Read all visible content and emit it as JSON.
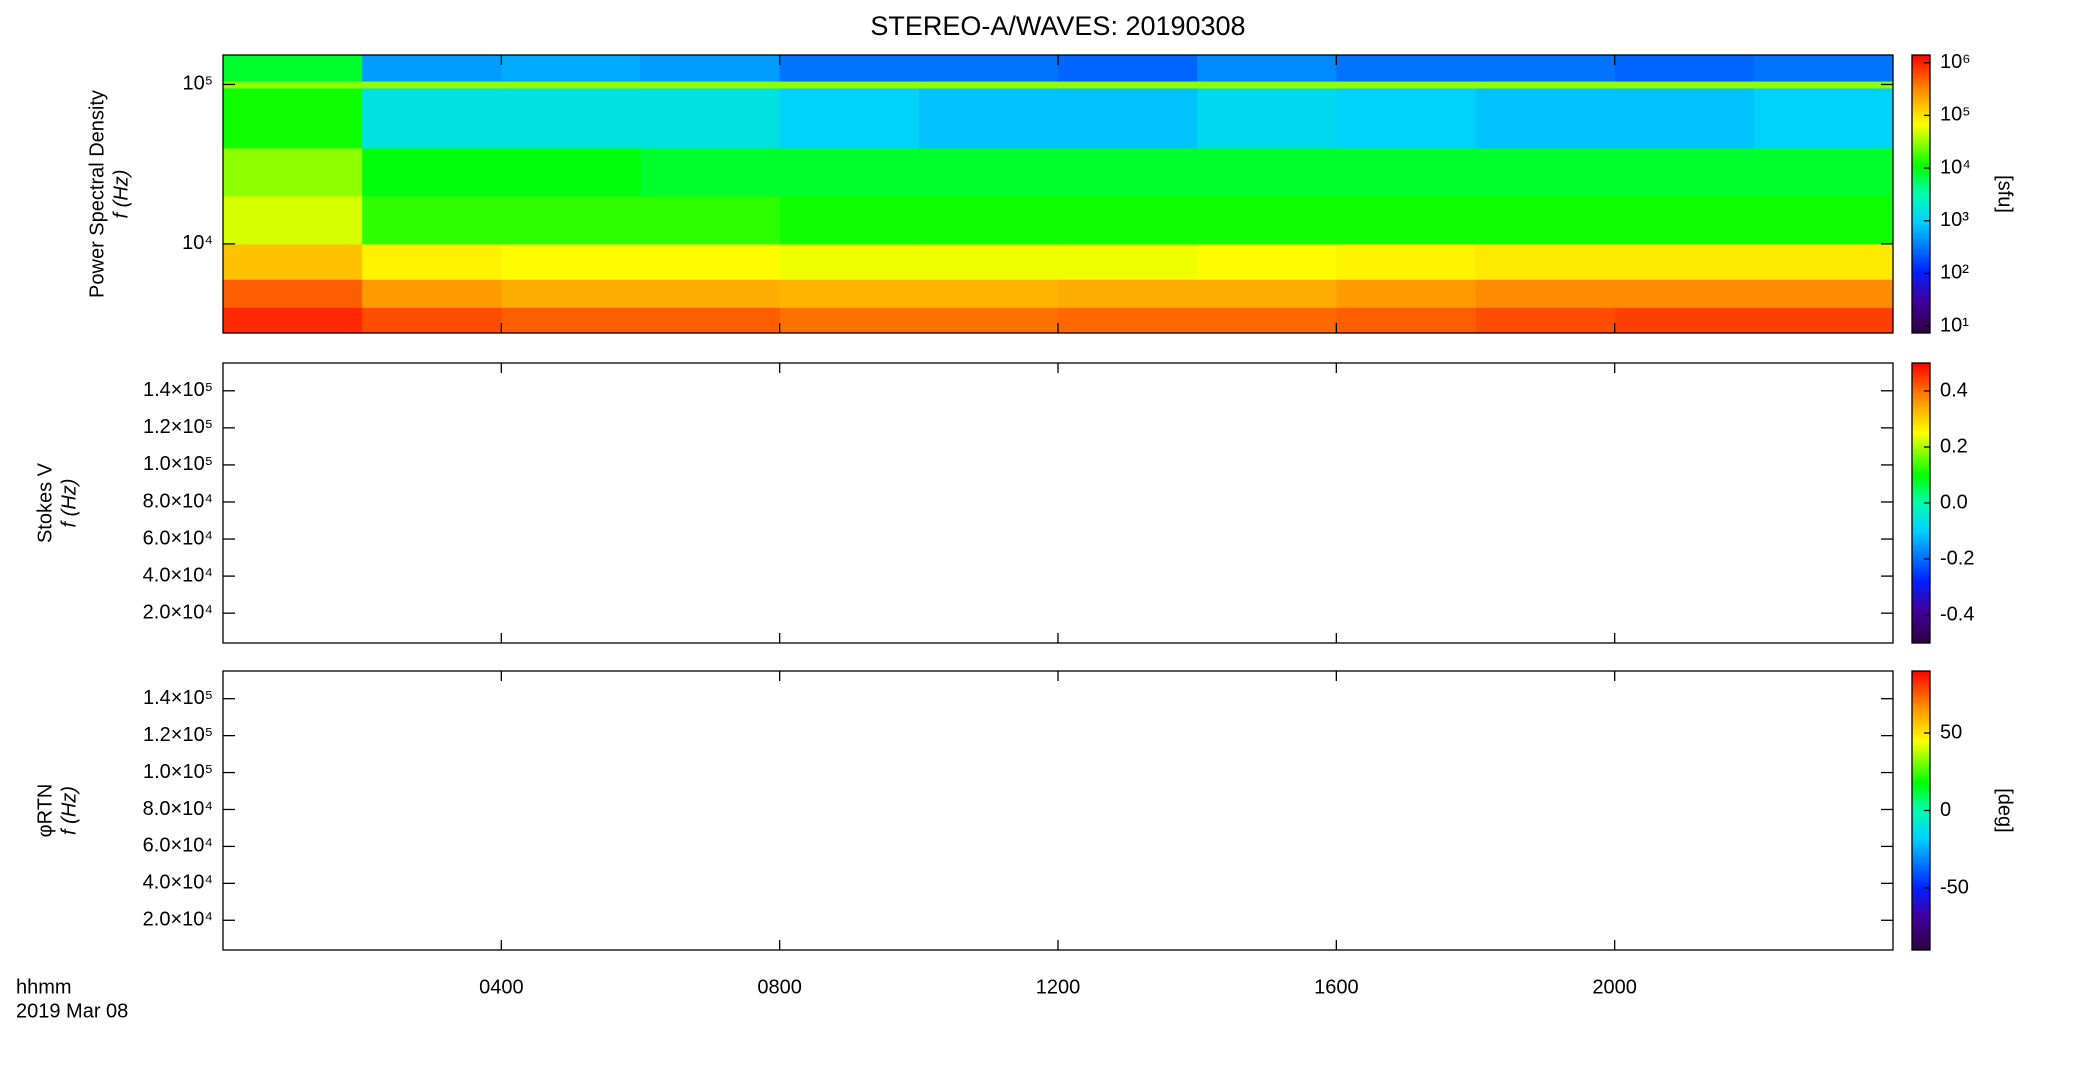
{
  "chart_data": [
    {
      "type": "heatmap",
      "title": "STEREO-A/WAVES: 20190308",
      "ylabel": [
        "Power Spectral Density",
        "f (Hz)"
      ],
      "xlim": [
        0,
        24
      ],
      "xticks": [
        4,
        8,
        12,
        16,
        20
      ],
      "ylog": true,
      "ylim": [
        2760,
        153000
      ],
      "yticks": [
        {
          "value": 10000,
          "label": "10⁴"
        },
        {
          "value": 100000,
          "label": "10⁵"
        }
      ],
      "x_bins": [
        0,
        2,
        4,
        6,
        8,
        10,
        12,
        14,
        16,
        18,
        20,
        22,
        24
      ],
      "y_bins": [
        2760,
        4000,
        6000,
        10000,
        20000,
        40000,
        95000,
        105000,
        153000
      ],
      "values": [
        [
          900000,
          600000,
          500000,
          500000,
          400000,
          400000,
          450000,
          450000,
          500000,
          600000,
          700000,
          700000
        ],
        [
          500000,
          250000,
          200000,
          200000,
          180000,
          180000,
          200000,
          200000,
          250000,
          300000,
          300000,
          300000
        ],
        [
          150000,
          80000,
          70000,
          70000,
          60000,
          60000,
          60000,
          70000,
          80000,
          90000,
          90000,
          90000
        ],
        [
          50000,
          15000,
          15000,
          15000,
          12000,
          12000,
          12000,
          12000,
          12000,
          12000,
          12000,
          12000
        ],
        [
          30000,
          10000,
          10000,
          8000,
          8000,
          8000,
          8000,
          8000,
          8000,
          8000,
          8000,
          8000
        ],
        [
          12000,
          1500,
          1500,
          1500,
          1000,
          800,
          800,
          1200,
          1000,
          800,
          800,
          1000
        ],
        [
          30000,
          30000,
          30000,
          30000,
          30000,
          30000,
          30000,
          30000,
          30000,
          30000,
          30000,
          30000
        ],
        [
          8000,
          500,
          600,
          500,
          300,
          300,
          250,
          400,
          300,
          300,
          250,
          300
        ]
      ],
      "clog": true,
      "clim": [
        7.4,
        1400000
      ],
      "cticks": [
        {
          "value": 10,
          "label": "10¹"
        },
        {
          "value": 100,
          "label": "10²"
        },
        {
          "value": 1000,
          "label": "10³"
        },
        {
          "value": 10000,
          "label": "10⁴"
        },
        {
          "value": 100000,
          "label": "10⁵"
        },
        {
          "value": 1000000,
          "label": "10⁶"
        }
      ],
      "clabel": "[sfu]"
    },
    {
      "type": "heatmap",
      "ylabel": [
        "Stokes V",
        "f (Hz)"
      ],
      "xlim": [
        0,
        24
      ],
      "xticks": [
        4,
        8,
        12,
        16,
        20
      ],
      "ylim": [
        3900,
        155000
      ],
      "yticks": [
        {
          "value": 20000,
          "label": "2.0×10⁴"
        },
        {
          "value": 40000,
          "label": "4.0×10⁴"
        },
        {
          "value": 60000,
          "label": "6.0×10⁴"
        },
        {
          "value": 80000,
          "label": "8.0×10⁴"
        },
        {
          "value": 100000,
          "label": "1.0×10⁵"
        },
        {
          "value": 120000,
          "label": "1.2×10⁵"
        },
        {
          "value": 140000,
          "label": "1.4×10⁵"
        }
      ],
      "clim": [
        -0.5,
        0.5
      ],
      "cticks": [
        -0.4,
        -0.2,
        {
          "value": 0,
          "label": "0.0"
        },
        0.2,
        0.4
      ]
    },
    {
      "type": "heatmap",
      "ylabel": [
        "φRTN",
        "f (Hz)"
      ],
      "xlim": [
        0,
        24
      ],
      "xticks": [
        {
          "value": 4,
          "label": "0400"
        },
        {
          "value": 8,
          "label": "0800"
        },
        {
          "value": 12,
          "label": "1200"
        },
        {
          "value": 16,
          "label": "1600"
        },
        {
          "value": 20,
          "label": "2000"
        }
      ],
      "xlabel": [
        "hhmm",
        "2019 Mar 08"
      ],
      "ylim": [
        3900,
        155000
      ],
      "yticks": [
        {
          "value": 20000,
          "label": "2.0×10⁴"
        },
        {
          "value": 40000,
          "label": "4.0×10⁴"
        },
        {
          "value": 60000,
          "label": "6.0×10⁴"
        },
        {
          "value": 80000,
          "label": "8.0×10⁴"
        },
        {
          "value": 100000,
          "label": "1.0×10⁵"
        },
        {
          "value": 120000,
          "label": "1.2×10⁵"
        },
        {
          "value": 140000,
          "label": "1.4×10⁵"
        }
      ],
      "clim": [
        -90,
        90
      ],
      "cticks": [
        -50,
        0,
        50
      ],
      "clabel": "[deg]"
    }
  ]
}
